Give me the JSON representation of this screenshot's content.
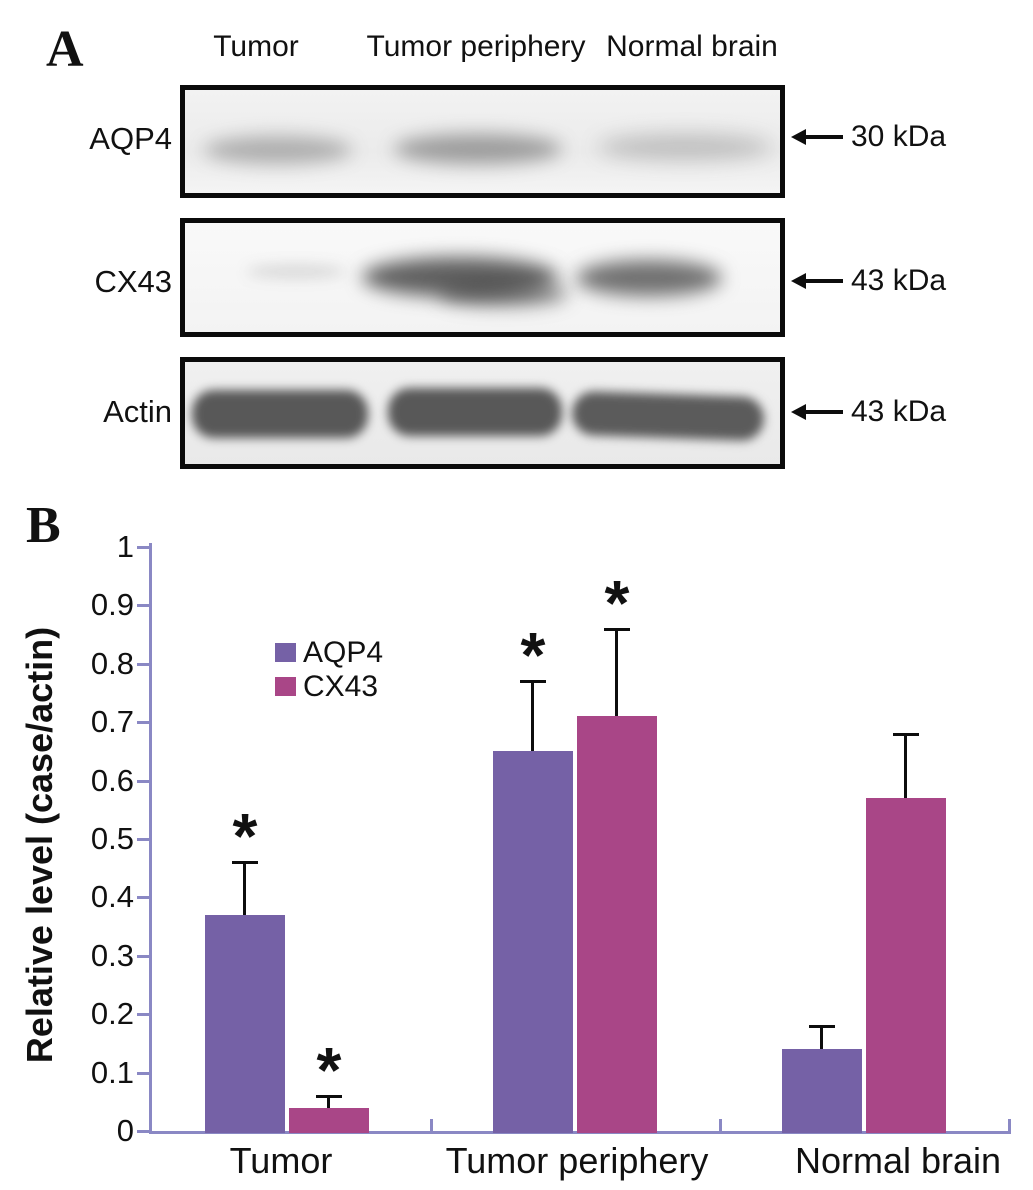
{
  "figure": {
    "panel_a_label": "A",
    "panel_b_label": "B"
  },
  "panel_a": {
    "column_headers": [
      "Tumor",
      "Tumor periphery",
      "Normal brain"
    ],
    "rows": [
      {
        "label": "AQP4",
        "marker": "30 kDa",
        "band_intensities": [
          0.35,
          0.45,
          0.26
        ]
      },
      {
        "label": "CX43",
        "marker": "43 kDa",
        "band_intensities": [
          0.16,
          0.78,
          0.7
        ]
      },
      {
        "label": "Actin",
        "marker": "43 kDa",
        "band_intensities": [
          0.92,
          0.92,
          0.9
        ]
      }
    ]
  },
  "chart_data": {
    "type": "bar",
    "title": "",
    "xlabel": "",
    "ylabel": "Relative level (case/actin)",
    "categories": [
      "Tumor",
      "Tumor periphery",
      "Normal brain"
    ],
    "series": [
      {
        "name": "AQP4",
        "color": "#7561a6",
        "values": [
          0.37,
          0.65,
          0.14
        ],
        "errors_up": [
          0.09,
          0.12,
          0.04
        ],
        "significant": [
          true,
          true,
          false
        ]
      },
      {
        "name": "CX43",
        "color": "#a94687",
        "values": [
          0.04,
          0.71,
          0.57
        ],
        "errors_up": [
          0.02,
          0.15,
          0.11
        ],
        "significant": [
          true,
          true,
          false
        ]
      }
    ],
    "ylim": [
      0,
      1
    ],
    "y_ticks": [
      "0",
      "0.1",
      "0.2",
      "0.3",
      "0.4",
      "0.5",
      "0.6",
      "0.7",
      "0.8",
      "0.9",
      "1"
    ],
    "grid": false,
    "legend_position": "inside-upper-left",
    "axis_color": "#8a88c4",
    "error_bar_color": "#0d0d0d",
    "significance_marker": "*"
  }
}
